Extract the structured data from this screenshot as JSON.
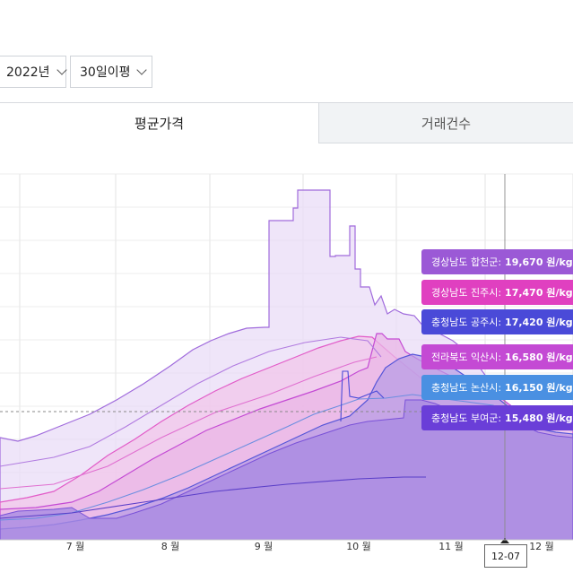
{
  "filters": {
    "year": "2022년",
    "range": "30일이평"
  },
  "tabs": [
    {
      "label": "평균가격",
      "active": true
    },
    {
      "label": "거래건수",
      "active": false
    }
  ],
  "crosshair_date": "12-07",
  "chart_data": {
    "type": "area",
    "x_ticks": [
      "7 월",
      "8 월",
      "9 월",
      "10 월",
      "11 월",
      "12 월"
    ],
    "series": [
      {
        "name": "경상남도 합천군",
        "color": "#9b59d6",
        "current_value": "19,670 원/kg"
      },
      {
        "name": "경상남도 진주시",
        "color": "#e040c0",
        "current_value": "17,470 원/kg"
      },
      {
        "name": "충청남도 공주시",
        "color": "#4a4ad8",
        "current_value": "17,420 원/kg"
      },
      {
        "name": "전라북도 익산시",
        "color": "#c44ad4",
        "current_value": "16,580 원/kg"
      },
      {
        "name": "충청남도 논산시",
        "color": "#4a90e2",
        "current_value": "16,150 원/kg"
      },
      {
        "name": "충청남도 부여군",
        "color": "#6a3ed8",
        "current_value": "15,480 원/kg"
      }
    ],
    "grid": true,
    "legend": "tooltip-right"
  }
}
